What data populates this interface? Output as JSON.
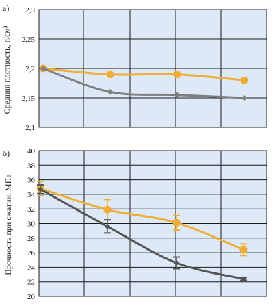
{
  "colors": {
    "plot_bg": "#dde9f6",
    "grid": "#1a1a1a",
    "orange": "#f0ad35",
    "gray_top": "#7f7f7f",
    "gray_bottom": "#555555"
  },
  "chart_data": [
    {
      "type": "line",
      "panel_label": "а)",
      "ylabel": "Средняя плотность, г/см³",
      "ylim": [
        2.1,
        2.3
      ],
      "yticks": [
        "2,1",
        "2,15",
        "2,2",
        "2,25",
        "2,3"
      ],
      "x": [
        0,
        1,
        2,
        3
      ],
      "grid": true,
      "series": [
        {
          "color": "orange",
          "marker": "circle",
          "values": [
            2.2,
            2.19,
            2.19,
            2.18
          ]
        },
        {
          "color": "gray_top",
          "marker": "diamond",
          "values": [
            2.2,
            2.16,
            2.155,
            2.15
          ]
        }
      ]
    },
    {
      "type": "line",
      "panel_label": "б)",
      "ylabel": "Прочность при сжатии, МПа",
      "ylim": [
        20,
        40
      ],
      "yticks": [
        "20",
        "22",
        "24",
        "26",
        "28",
        "30",
        "32",
        "34",
        "36",
        "38",
        "40"
      ],
      "x": [
        0,
        1,
        2,
        3
      ],
      "grid": true,
      "series": [
        {
          "color": "orange",
          "marker": "circle",
          "values": [
            34.8,
            31.9,
            30.1,
            26.4
          ],
          "errors": [
            1.0,
            1.4,
            1.0,
            0.8
          ]
        },
        {
          "color": "gray_bottom",
          "marker": "diamond",
          "values": [
            34.7,
            29.6,
            24.6,
            22.4
          ],
          "errors": [
            0.6,
            0.9,
            0.8,
            0.2
          ]
        }
      ]
    }
  ]
}
